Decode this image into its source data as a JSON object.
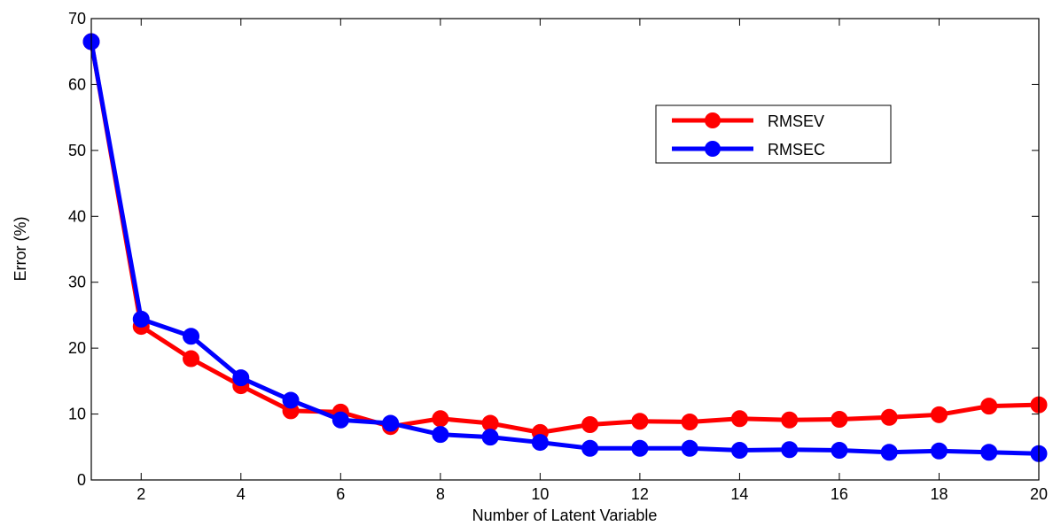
{
  "chart_data": {
    "type": "line",
    "title": "",
    "xlabel": "Number of Latent Variable",
    "ylabel": "Error (%)",
    "xlim": [
      1,
      20
    ],
    "ylim": [
      0,
      70
    ],
    "xticks": [
      2,
      4,
      6,
      8,
      10,
      12,
      14,
      16,
      18,
      20
    ],
    "yticks": [
      0,
      10,
      20,
      30,
      40,
      50,
      60,
      70
    ],
    "grid": false,
    "legend_position": "top-right",
    "x": [
      1,
      2,
      3,
      4,
      5,
      6,
      7,
      8,
      9,
      10,
      11,
      12,
      13,
      14,
      15,
      16,
      17,
      18,
      19,
      20
    ],
    "series": [
      {
        "name": "RMSEV",
        "color": "#ff0000",
        "values": [
          66.5,
          23.3,
          18.4,
          14.3,
          10.5,
          10.3,
          8.1,
          9.3,
          8.6,
          7.2,
          8.4,
          8.9,
          8.8,
          9.3,
          9.1,
          9.2,
          9.5,
          9.9,
          11.2,
          11.4
        ]
      },
      {
        "name": "RMSEC",
        "color": "#0000ff",
        "values": [
          66.5,
          24.4,
          21.8,
          15.5,
          12.1,
          9.1,
          8.6,
          6.9,
          6.5,
          5.7,
          4.8,
          4.8,
          4.8,
          4.5,
          4.6,
          4.5,
          4.2,
          4.4,
          4.2,
          4.0
        ]
      }
    ]
  }
}
